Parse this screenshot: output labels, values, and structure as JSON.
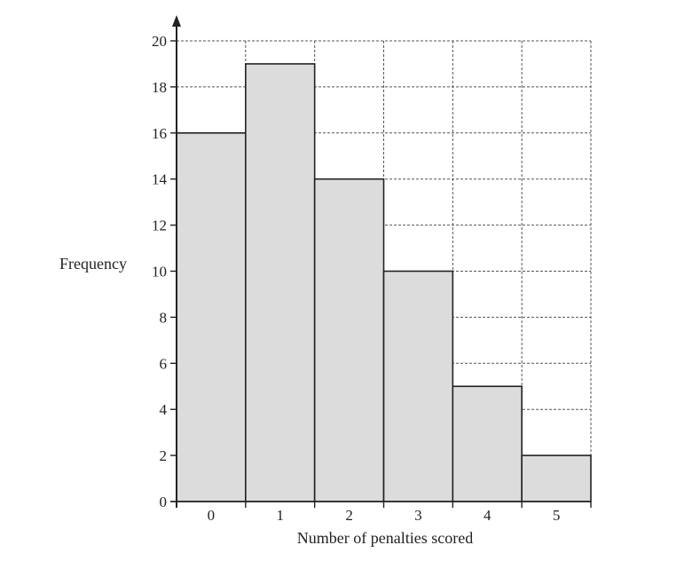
{
  "chart_data": {
    "type": "bar",
    "categories": [
      "0",
      "1",
      "2",
      "3",
      "4",
      "5"
    ],
    "values": [
      16,
      19,
      14,
      10,
      5,
      2
    ],
    "title": "",
    "xlabel": "Number of penalties scored",
    "ylabel": "Frequency",
    "ylim": [
      0,
      20
    ],
    "yticks": [
      "0",
      "2",
      "4",
      "6",
      "8",
      "10",
      "12",
      "14",
      "16",
      "18",
      "20"
    ],
    "grid": true,
    "bar_fill": "#dcdcdc",
    "line_color": "#222222",
    "grid_color": "#555555"
  }
}
